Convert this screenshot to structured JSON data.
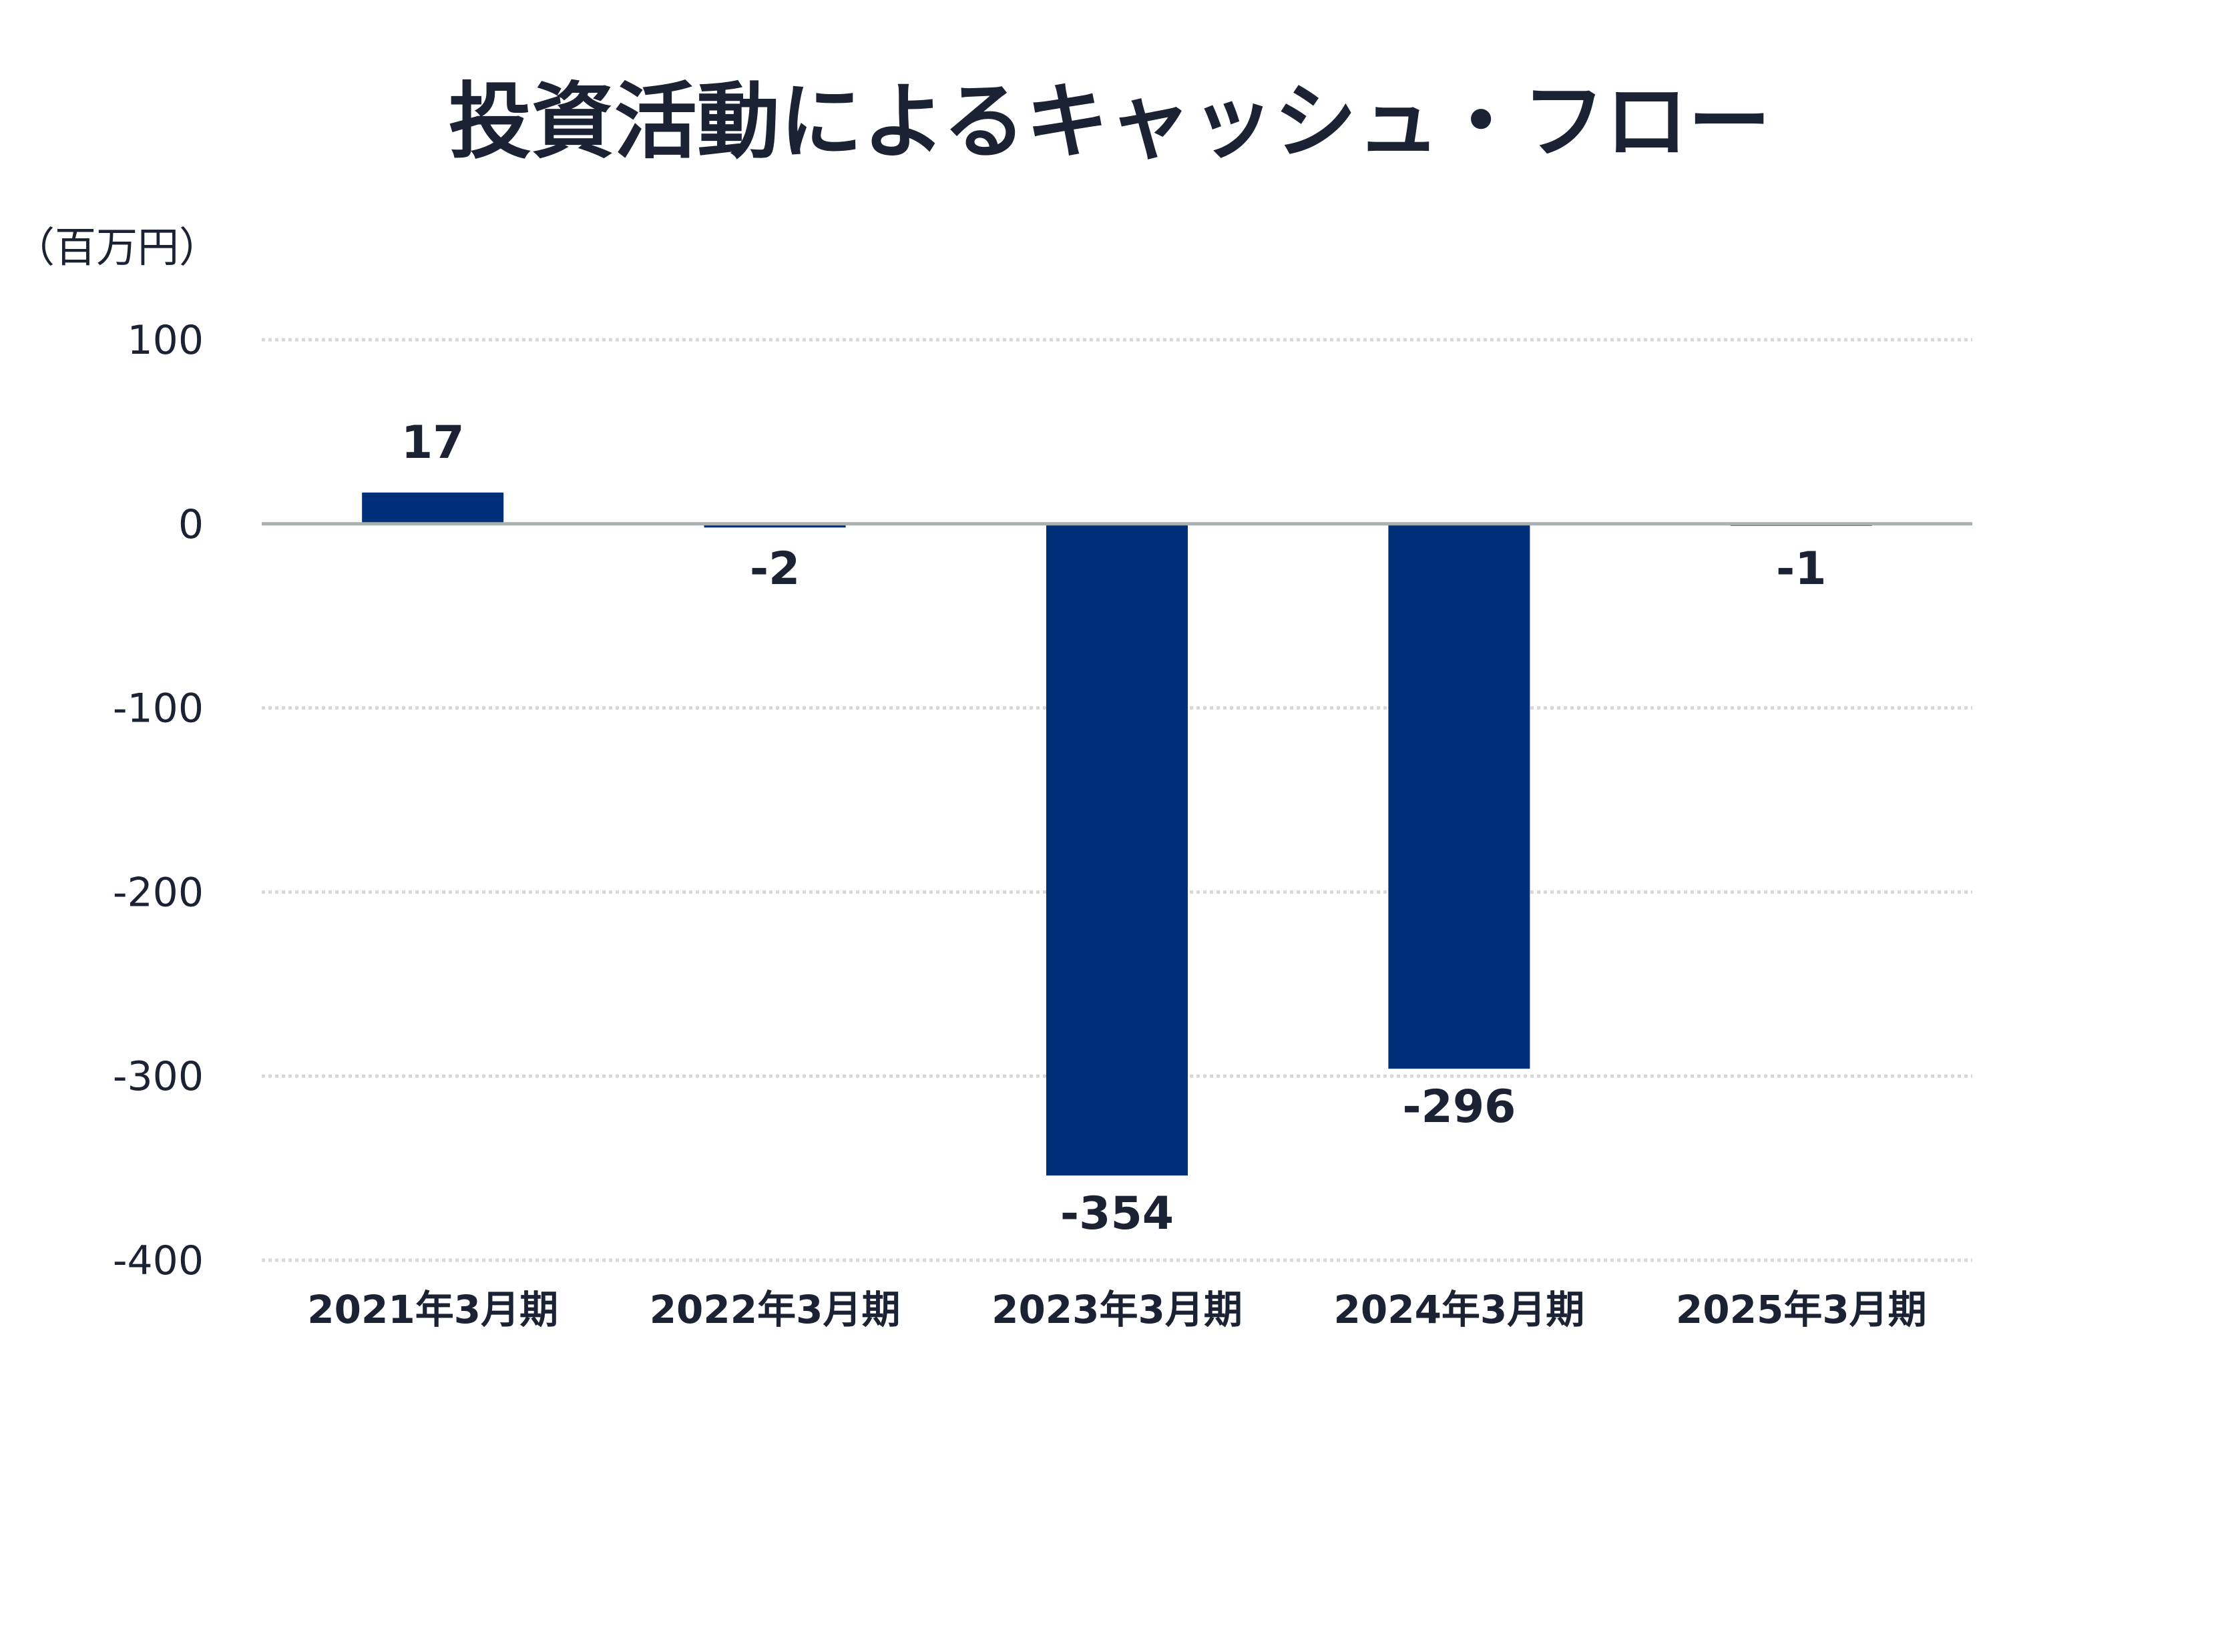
{
  "chart_data": {
    "type": "bar",
    "title": "投資活動によるキャッシュ・フロー",
    "unit_label": "（百万円）",
    "xlabel": "",
    "ylabel": "",
    "categories": [
      "2021年3月期",
      "2022年3月期",
      "2023年3月期",
      "2024年3月期",
      "2025年3月期"
    ],
    "values": [
      17,
      -2,
      -354,
      -296,
      -1
    ],
    "value_labels": [
      "17",
      "-2",
      "-354",
      "-296",
      "-1"
    ],
    "ylim": [
      -400,
      100
    ],
    "yticks": [
      100,
      0,
      -100,
      -200,
      -300,
      -400
    ],
    "ytick_labels": [
      "100",
      "0",
      "-100",
      "-200",
      "-300",
      "-400"
    ],
    "grid": true,
    "legend": "none",
    "colors": {
      "bar": "#002f7a",
      "zero_line": "#a8b0b0",
      "grid": "#d8d8d8",
      "text": "#1a2233"
    }
  }
}
